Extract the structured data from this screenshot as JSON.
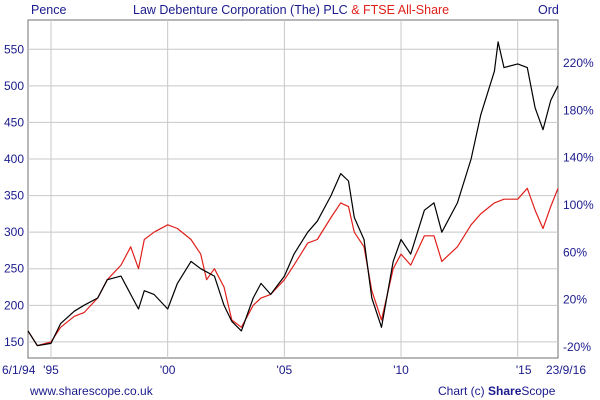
{
  "header": {
    "left_unit": "Pence",
    "title_primary": "Law Debenture Corporation (The) PLC",
    "title_secondary": "& FTSE All-Share",
    "right_unit": "Ord"
  },
  "footer": {
    "website": "www.sharescope.co.uk",
    "credit_prefix": "Chart (c) ",
    "credit_brand_bold": "Share",
    "credit_brand_rest": "Scope"
  },
  "colors": {
    "primary_series": "#000000",
    "secondary_series": "#e0201b",
    "axis_text": "#1a1a8c",
    "grid": "#c8c8c8"
  },
  "chart_data": {
    "type": "line",
    "x_range": [
      "1994-01-06",
      "2016-09-23"
    ],
    "x_tick_labels": [
      {
        "label": "6/1/94",
        "date": "1994-01-06"
      },
      {
        "label": "'95",
        "date": "1995-01-01"
      },
      {
        "label": "'00",
        "date": "2000-01-01"
      },
      {
        "label": "'05",
        "date": "2005-01-01"
      },
      {
        "label": "'10",
        "date": "2010-01-01"
      },
      {
        "label": "'15",
        "date": "2015-01-01"
      },
      {
        "label": "23/9/16",
        "date": "2016-09-23"
      }
    ],
    "y_left": {
      "ylim": [
        128,
        590
      ],
      "ticks": [
        150,
        200,
        250,
        300,
        350,
        400,
        450,
        500,
        550
      ]
    },
    "y_right": {
      "ticks": [
        "-20%",
        "20%",
        "60%",
        "100%",
        "140%",
        "180%",
        "220%"
      ]
    },
    "grid": true,
    "series": [
      {
        "name": "Law Debenture Corporation (The) PLC",
        "values": [
          {
            "x": "1994-01-06",
            "y": 165
          },
          {
            "x": "1994-06-01",
            "y": 145
          },
          {
            "x": "1995-01-01",
            "y": 148
          },
          {
            "x": "1995-06-01",
            "y": 175
          },
          {
            "x": "1996-01-01",
            "y": 192
          },
          {
            "x": "1996-06-01",
            "y": 200
          },
          {
            "x": "1997-01-01",
            "y": 210
          },
          {
            "x": "1997-06-01",
            "y": 235
          },
          {
            "x": "1998-01-01",
            "y": 240
          },
          {
            "x": "1998-06-01",
            "y": 215
          },
          {
            "x": "1998-10-01",
            "y": 195
          },
          {
            "x": "1999-01-01",
            "y": 220
          },
          {
            "x": "1999-06-01",
            "y": 215
          },
          {
            "x": "2000-01-01",
            "y": 195
          },
          {
            "x": "2000-06-01",
            "y": 230
          },
          {
            "x": "2001-01-01",
            "y": 260
          },
          {
            "x": "2001-06-01",
            "y": 250
          },
          {
            "x": "2002-01-01",
            "y": 240
          },
          {
            "x": "2002-06-01",
            "y": 200
          },
          {
            "x": "2002-10-01",
            "y": 178
          },
          {
            "x": "2003-03-01",
            "y": 165
          },
          {
            "x": "2003-09-01",
            "y": 210
          },
          {
            "x": "2004-01-01",
            "y": 230
          },
          {
            "x": "2004-06-01",
            "y": 215
          },
          {
            "x": "2005-01-01",
            "y": 240
          },
          {
            "x": "2005-06-01",
            "y": 270
          },
          {
            "x": "2006-01-01",
            "y": 300
          },
          {
            "x": "2006-06-01",
            "y": 315
          },
          {
            "x": "2007-01-01",
            "y": 350
          },
          {
            "x": "2007-06-01",
            "y": 380
          },
          {
            "x": "2007-10-01",
            "y": 370
          },
          {
            "x": "2008-01-01",
            "y": 320
          },
          {
            "x": "2008-06-01",
            "y": 290
          },
          {
            "x": "2008-10-01",
            "y": 210
          },
          {
            "x": "2009-03-01",
            "y": 170
          },
          {
            "x": "2009-09-01",
            "y": 260
          },
          {
            "x": "2010-01-01",
            "y": 290
          },
          {
            "x": "2010-06-01",
            "y": 270
          },
          {
            "x": "2011-01-01",
            "y": 330
          },
          {
            "x": "2011-06-01",
            "y": 340
          },
          {
            "x": "2011-10-01",
            "y": 300
          },
          {
            "x": "2012-06-01",
            "y": 340
          },
          {
            "x": "2013-01-01",
            "y": 400
          },
          {
            "x": "2013-06-01",
            "y": 460
          },
          {
            "x": "2014-01-01",
            "y": 520
          },
          {
            "x": "2014-03-01",
            "y": 560
          },
          {
            "x": "2014-06-01",
            "y": 525
          },
          {
            "x": "2015-01-01",
            "y": 530
          },
          {
            "x": "2015-06-01",
            "y": 525
          },
          {
            "x": "2015-10-01",
            "y": 470
          },
          {
            "x": "2016-02-01",
            "y": 440
          },
          {
            "x": "2016-06-01",
            "y": 480
          },
          {
            "x": "2016-09-23",
            "y": 500
          }
        ]
      },
      {
        "name": "FTSE All-Share",
        "values": [
          {
            "x": "1994-01-06",
            "y": 165
          },
          {
            "x": "1994-06-01",
            "y": 145
          },
          {
            "x": "1995-01-01",
            "y": 150
          },
          {
            "x": "1995-06-01",
            "y": 170
          },
          {
            "x": "1996-01-01",
            "y": 185
          },
          {
            "x": "1996-06-01",
            "y": 190
          },
          {
            "x": "1997-01-01",
            "y": 210
          },
          {
            "x": "1997-06-01",
            "y": 235
          },
          {
            "x": "1998-01-01",
            "y": 255
          },
          {
            "x": "1998-06-01",
            "y": 280
          },
          {
            "x": "1998-10-01",
            "y": 250
          },
          {
            "x": "1999-01-01",
            "y": 290
          },
          {
            "x": "1999-06-01",
            "y": 300
          },
          {
            "x": "2000-01-01",
            "y": 310
          },
          {
            "x": "2000-06-01",
            "y": 305
          },
          {
            "x": "2001-01-01",
            "y": 290
          },
          {
            "x": "2001-06-01",
            "y": 270
          },
          {
            "x": "2001-09-01",
            "y": 235
          },
          {
            "x": "2002-01-01",
            "y": 250
          },
          {
            "x": "2002-06-01",
            "y": 225
          },
          {
            "x": "2002-10-01",
            "y": 180
          },
          {
            "x": "2003-03-01",
            "y": 170
          },
          {
            "x": "2003-09-01",
            "y": 200
          },
          {
            "x": "2004-01-01",
            "y": 210
          },
          {
            "x": "2004-06-01",
            "y": 215
          },
          {
            "x": "2005-01-01",
            "y": 235
          },
          {
            "x": "2005-06-01",
            "y": 255
          },
          {
            "x": "2006-01-01",
            "y": 285
          },
          {
            "x": "2006-06-01",
            "y": 290
          },
          {
            "x": "2007-01-01",
            "y": 320
          },
          {
            "x": "2007-06-01",
            "y": 340
          },
          {
            "x": "2007-10-01",
            "y": 335
          },
          {
            "x": "2008-01-01",
            "y": 300
          },
          {
            "x": "2008-06-01",
            "y": 280
          },
          {
            "x": "2008-10-01",
            "y": 220
          },
          {
            "x": "2009-03-01",
            "y": 180
          },
          {
            "x": "2009-09-01",
            "y": 250
          },
          {
            "x": "2010-01-01",
            "y": 270
          },
          {
            "x": "2010-06-01",
            "y": 255
          },
          {
            "x": "2011-01-01",
            "y": 295
          },
          {
            "x": "2011-06-01",
            "y": 295
          },
          {
            "x": "2011-10-01",
            "y": 260
          },
          {
            "x": "2012-06-01",
            "y": 280
          },
          {
            "x": "2013-01-01",
            "y": 310
          },
          {
            "x": "2013-06-01",
            "y": 325
          },
          {
            "x": "2014-01-01",
            "y": 340
          },
          {
            "x": "2014-06-01",
            "y": 345
          },
          {
            "x": "2015-01-01",
            "y": 345
          },
          {
            "x": "2015-06-01",
            "y": 360
          },
          {
            "x": "2015-10-01",
            "y": 330
          },
          {
            "x": "2016-02-01",
            "y": 305
          },
          {
            "x": "2016-06-01",
            "y": 335
          },
          {
            "x": "2016-09-23",
            "y": 360
          }
        ]
      }
    ]
  }
}
